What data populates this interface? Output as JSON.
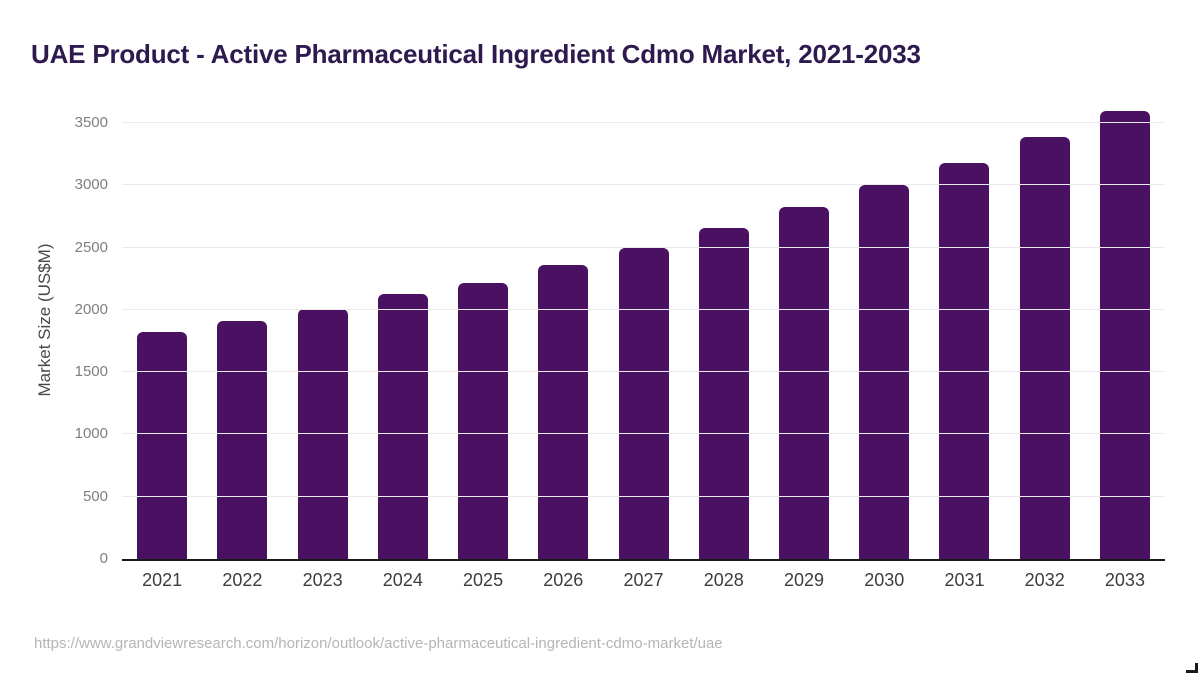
{
  "header": {
    "title": "UAE Product - Active Pharmaceutical Ingredient Cdmo Market, 2021-2033"
  },
  "chart_data": {
    "type": "bar",
    "title": "UAE Product - Active Pharmaceutical Ingredient Cdmo Market, 2021-2033",
    "categories": [
      "2021",
      "2022",
      "2023",
      "2024",
      "2025",
      "2026",
      "2027",
      "2028",
      "2029",
      "2030",
      "2031",
      "2032",
      "2033"
    ],
    "values": [
      1820,
      1910,
      2010,
      2125,
      2215,
      2360,
      2500,
      2655,
      2825,
      3000,
      3180,
      3390,
      3595
    ],
    "xlabel": "",
    "ylabel": "Market Size (US$M)",
    "ylim": [
      0,
      3500
    ],
    "yticks": [
      0,
      500,
      1000,
      1500,
      2000,
      2500,
      3000,
      3500
    ],
    "grid": "horizontal-only",
    "legend_position": "none"
  },
  "colors": {
    "bar": "#4a1162",
    "title": "#2e1a4e",
    "axis_line": "#1a1a1a",
    "gridline": "#ebebeb",
    "y_tick_label": "#7f7f7f",
    "x_tick_label": "#3d3d3d",
    "y_axis_title": "#474747",
    "footer_url": "#b5b5b5"
  },
  "footer": {
    "url": "https://www.grandviewresearch.com/horizon/outlook/active-pharmaceutical-ingredient-cdmo-market/uae"
  }
}
